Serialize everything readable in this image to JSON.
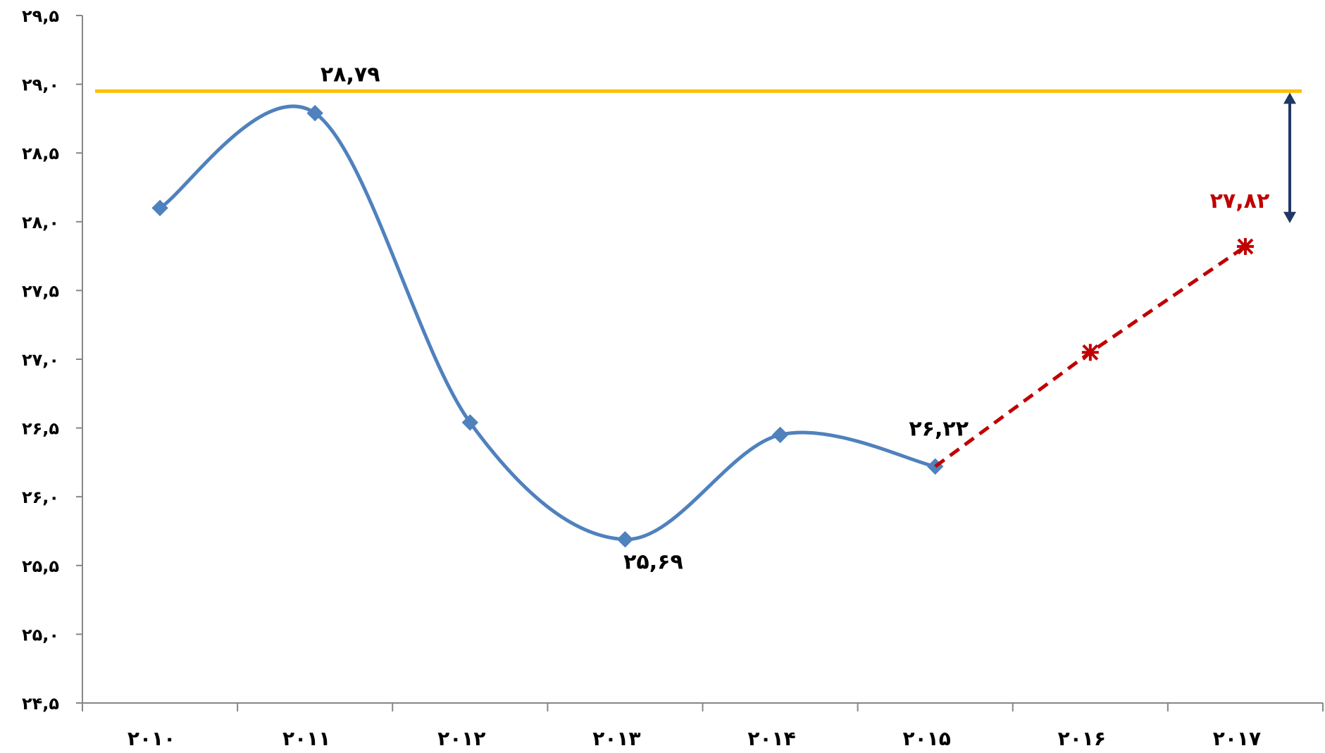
{
  "chart_data": {
    "type": "line",
    "categories": [
      "۲۰۱۰",
      "۲۰۱۱",
      "۲۰۱۲",
      "۲۰۱۳",
      "۲۰۱۴",
      "۲۰۱۵",
      "۲۰۱۶",
      "۲۰۱۷"
    ],
    "x": [
      2010,
      2011,
      2012,
      2013,
      2014,
      2015,
      2016,
      2017
    ],
    "ylim": [
      24.5,
      29.5
    ],
    "y_ticks": [
      24.5,
      25.0,
      25.5,
      26.0,
      26.5,
      27.0,
      27.5,
      28.0,
      28.5,
      29.0,
      29.5
    ],
    "y_tick_labels": [
      "۲۴,۵",
      "۲۵,۰",
      "۲۵,۵",
      "۲۶,۰",
      "۲۶,۵",
      "۲۷,۰",
      "۲۷,۵",
      "۲۸,۰",
      "۲۸,۵",
      "۲۹,۰",
      "۲۹,۵"
    ],
    "grid": false,
    "legend": "none",
    "series": [
      {
        "style": "solid-smooth",
        "color": "#4F81BD",
        "marker": "diamond",
        "x": [
          2010,
          2011,
          2012,
          2013,
          2014,
          2015
        ],
        "values": [
          28.1,
          28.79,
          26.54,
          25.69,
          26.45,
          26.22
        ]
      },
      {
        "style": "dashed",
        "color": "#C00000",
        "marker": "asterisk",
        "x": [
          2015,
          2016,
          2017
        ],
        "values": [
          26.22,
          27.05,
          27.82
        ]
      }
    ],
    "reference_line": {
      "value": 28.95,
      "color": "#FFC000"
    },
    "gap_arrow": {
      "color": "#1F3864",
      "from": 28.95,
      "to": 28.0
    },
    "data_labels": [
      {
        "text": "۲۸,۷۹",
        "x": 2011,
        "y": 28.79,
        "color": "#000000",
        "position": "above"
      },
      {
        "text": "۲۵,۶۹",
        "x": 2013,
        "y": 25.69,
        "color": "#000000",
        "position": "below"
      },
      {
        "text": "۲۶,۲۲",
        "x": 2015,
        "y": 26.22,
        "color": "#000000",
        "position": "above"
      },
      {
        "text": "۲۷,۸۲",
        "x": 2017,
        "y": 27.82,
        "color": "#C00000",
        "position": "above"
      }
    ]
  }
}
